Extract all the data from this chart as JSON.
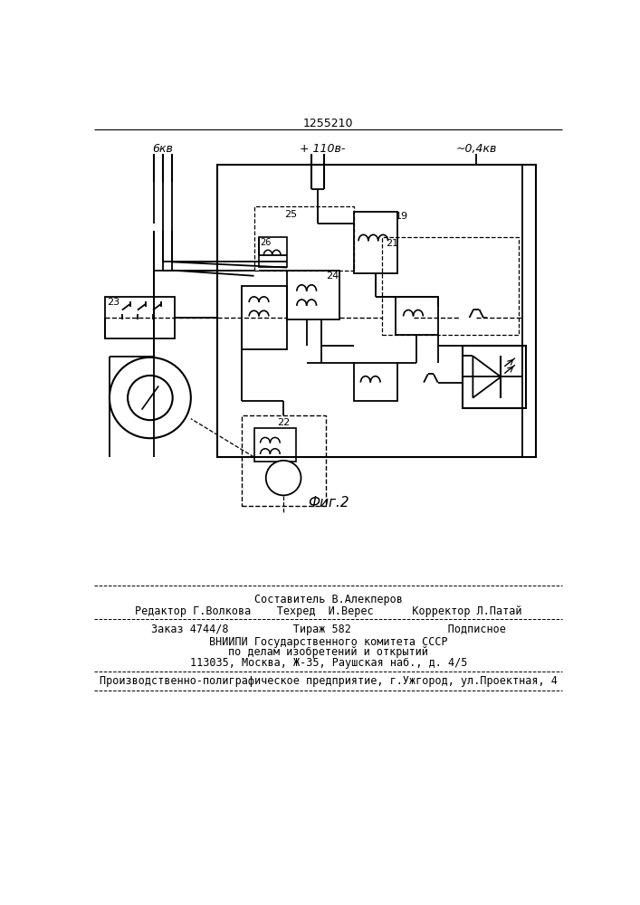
{
  "bg_color": "#ffffff",
  "title": "1255210",
  "fig_caption": "Фиг.2",
  "label_6kv": "6кв",
  "label_110v": "+ 110в-",
  "label_04kv": "~0,4кв",
  "footer": {
    "line1": "Составитель В.Алекперов",
    "line2": "Редактор Г.Волкова    Техред  И.Верес      Корректор Л.Патай",
    "line3": "Заказ 4744/8          Тираж 582               Подписное",
    "line4": "ВНИИПИ Государственного комитета СССР",
    "line5": "по делам изобретений и открытий",
    "line6": "113035, Москва, Ж-35, Раушская наб., д. 4/5",
    "line7": "Производственно-полиграфическое предприятие, г.Ужгород, ул.Проектная, 4"
  }
}
